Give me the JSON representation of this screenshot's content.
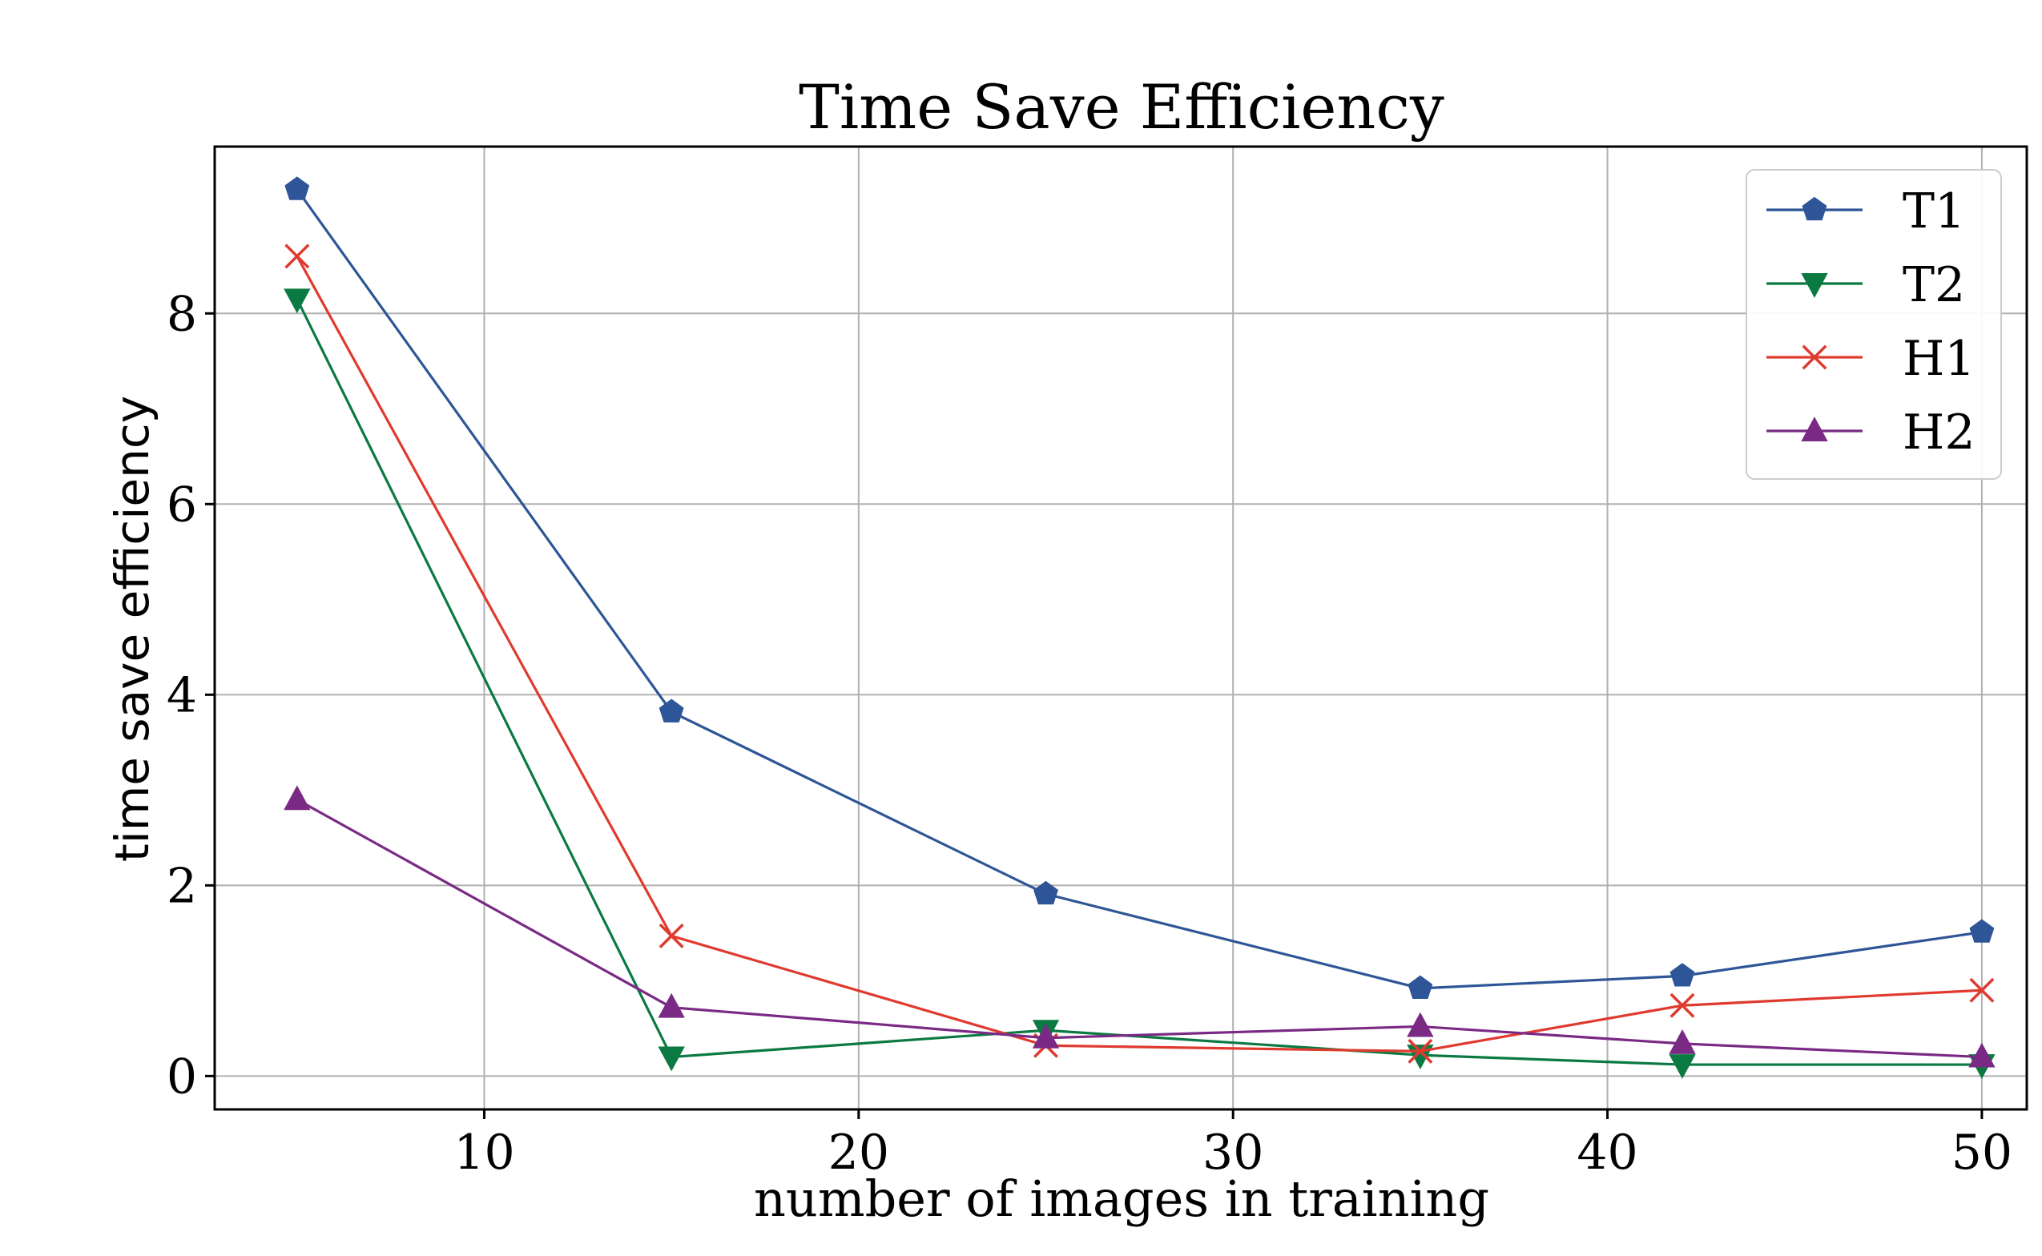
{
  "chart_data": {
    "type": "line",
    "title": "Time Save Efficiency",
    "xlabel": "number of images in training",
    "ylabel": "time save efficiency",
    "xlim": [
      2.8,
      51.2
    ],
    "ylim": [
      -0.35,
      9.75
    ],
    "xticks": [
      10,
      20,
      30,
      40,
      50
    ],
    "yticks": [
      0,
      2,
      4,
      6,
      8
    ],
    "grid": true,
    "legend_position": "top-right",
    "series": [
      {
        "name": "T1",
        "color": "#2e5597",
        "marker": "pentagon",
        "x": [
          5,
          15,
          25,
          35,
          42,
          50
        ],
        "y": [
          9.3,
          3.82,
          1.91,
          0.92,
          1.05,
          1.51
        ]
      },
      {
        "name": "T2",
        "color": "#0b7a42",
        "marker": "triangle-down",
        "x": [
          5,
          15,
          25,
          35,
          42,
          50
        ],
        "y": [
          8.15,
          0.2,
          0.48,
          0.22,
          0.12,
          0.12
        ]
      },
      {
        "name": "H1",
        "color": "#e03a2f",
        "marker": "x",
        "x": [
          5,
          15,
          25,
          35,
          42,
          50
        ],
        "y": [
          8.6,
          1.47,
          0.32,
          0.26,
          0.74,
          0.9
        ]
      },
      {
        "name": "H2",
        "color": "#7a2a84",
        "marker": "triangle-up",
        "x": [
          5,
          15,
          25,
          35,
          42,
          50
        ],
        "y": [
          2.9,
          0.72,
          0.4,
          0.52,
          0.34,
          0.2
        ]
      }
    ]
  }
}
